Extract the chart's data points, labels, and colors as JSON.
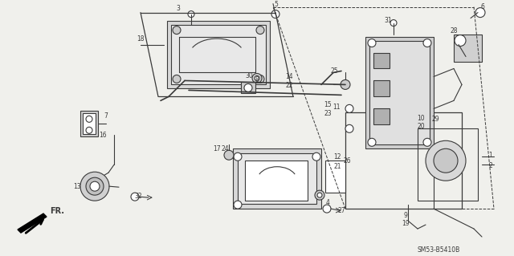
{
  "bg_color": "#f0f0ec",
  "line_color": "#3a3a3a",
  "watermark": "SM53-B5410B",
  "arrow_label": "FR.",
  "figsize": [
    6.4,
    3.19
  ],
  "dpi": 100
}
